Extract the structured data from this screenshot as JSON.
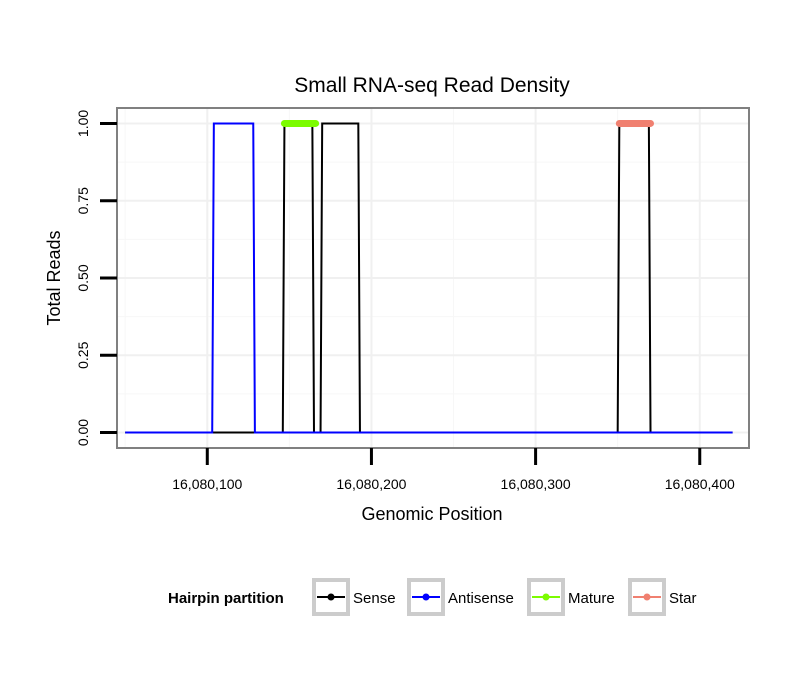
{
  "chart_data": {
    "type": "line",
    "title": "Small RNA-seq Read Density",
    "xlabel": "Genomic Position",
    "ylabel": "Total Reads",
    "xlim": [
      16080045,
      16080430
    ],
    "ylim": [
      -0.05,
      1.05
    ],
    "x_ticks": [
      16080100,
      16080200,
      16080300,
      16080400
    ],
    "x_tick_labels": [
      "16,080,100",
      "16,080,200",
      "16,080,300",
      "16,080,400"
    ],
    "y_ticks": [
      0,
      0.25,
      0.5,
      0.75,
      1.0
    ],
    "y_tick_labels": [
      "0.00",
      "0.25",
      "0.50",
      "0.75",
      "1.00"
    ],
    "grid": true,
    "legend": {
      "title": "Hairpin partition",
      "position": "bottom",
      "entries": [
        {
          "label": "Sense",
          "color": "#000000"
        },
        {
          "label": "Antisense",
          "color": "#0000ff"
        },
        {
          "label": "Mature",
          "color": "#7cfc00"
        },
        {
          "label": "Star",
          "color": "#f08070"
        }
      ]
    },
    "series": [
      {
        "name": "Sense",
        "color": "#000000",
        "points": [
          [
            16080050,
            0
          ],
          [
            16080146,
            0
          ],
          [
            16080147,
            1
          ],
          [
            16080164,
            1
          ],
          [
            16080165,
            0
          ],
          [
            16080169,
            0
          ],
          [
            16080170,
            1
          ],
          [
            16080192,
            1
          ],
          [
            16080193,
            0
          ],
          [
            16080350,
            0
          ],
          [
            16080351,
            1
          ],
          [
            16080369,
            1
          ],
          [
            16080370,
            0
          ],
          [
            16080420,
            0
          ]
        ]
      },
      {
        "name": "Antisense",
        "color": "#0000ff",
        "points": [
          [
            16080050,
            0
          ],
          [
            16080103,
            0
          ],
          [
            16080104,
            1
          ],
          [
            16080128,
            1
          ],
          [
            16080129,
            0
          ],
          [
            16080420,
            0
          ]
        ]
      },
      {
        "name": "Mature",
        "color": "#7cfc00",
        "points": [
          [
            16080147,
            1
          ],
          [
            16080166,
            1
          ]
        ]
      },
      {
        "name": "Star",
        "color": "#f08070",
        "points": [
          [
            16080351,
            1
          ],
          [
            16080370,
            1
          ]
        ]
      }
    ]
  }
}
